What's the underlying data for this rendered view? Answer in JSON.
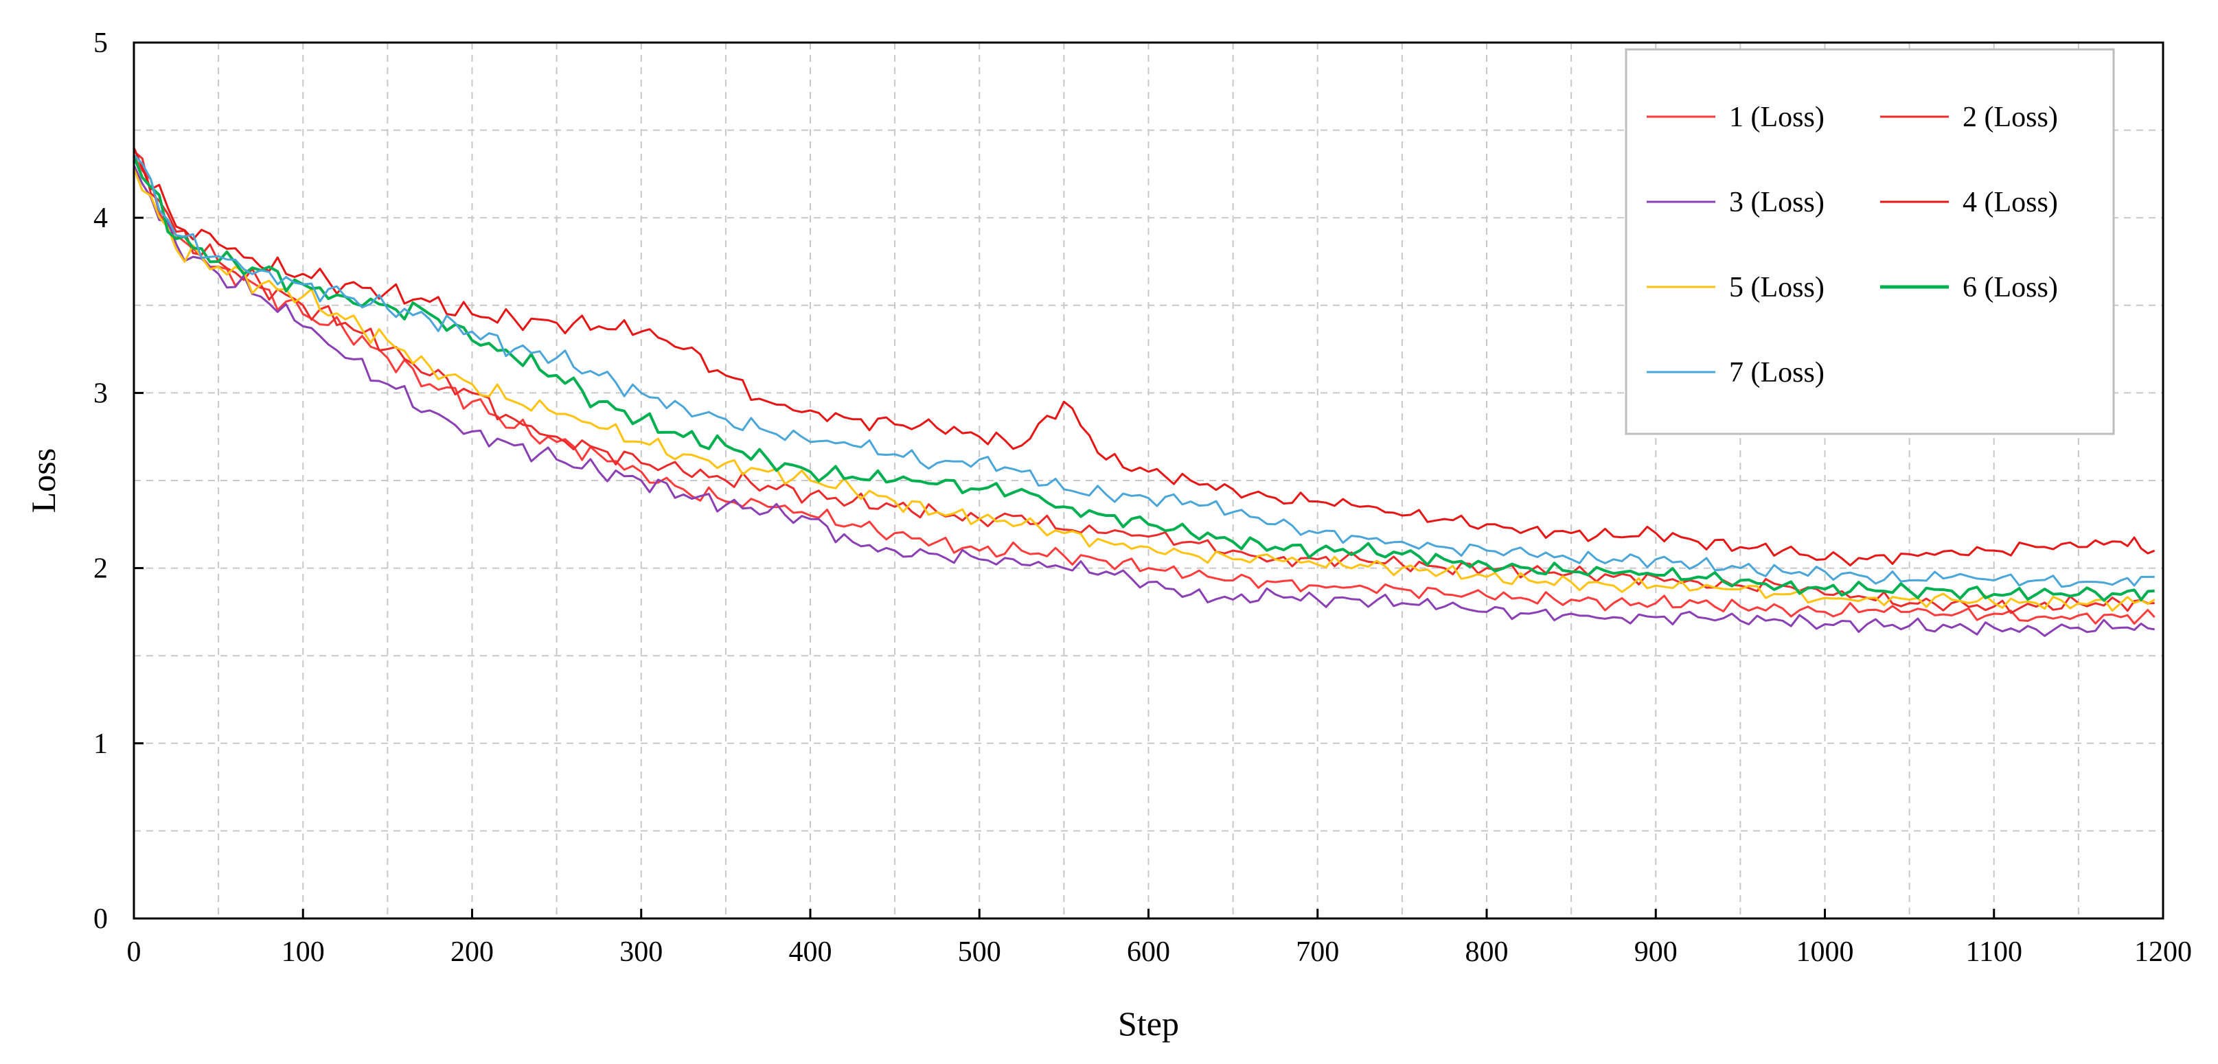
{
  "chart_data": {
    "type": "line",
    "title": "",
    "xlabel": "Step",
    "ylabel": "Loss",
    "xlim": [
      0,
      1200
    ],
    "ylim": [
      0,
      5
    ],
    "xticks": [
      0,
      100,
      200,
      300,
      400,
      500,
      600,
      700,
      800,
      900,
      1000,
      1100,
      1200
    ],
    "yticks": [
      0,
      1,
      2,
      3,
      4,
      5
    ],
    "grid": true,
    "legend_position": "top-right",
    "x": [
      0,
      25,
      50,
      75,
      100,
      125,
      150,
      175,
      200,
      225,
      250,
      275,
      300,
      325,
      350,
      375,
      400,
      425,
      450,
      475,
      500,
      525,
      550,
      575,
      600,
      625,
      650,
      675,
      700,
      725,
      750,
      775,
      800,
      825,
      850,
      875,
      900,
      925,
      950,
      975,
      1000,
      1025,
      1050,
      1075,
      1100,
      1125,
      1150,
      1175,
      1195
    ],
    "series": [
      {
        "name": "1 (Loss)",
        "color": "#ff3b3b",
        "values": [
          4.35,
          3.9,
          3.72,
          3.6,
          3.45,
          3.35,
          3.2,
          3.05,
          2.95,
          2.8,
          2.72,
          2.65,
          2.55,
          2.45,
          2.38,
          2.35,
          2.3,
          2.25,
          2.2,
          2.15,
          2.1,
          2.1,
          2.07,
          2.04,
          2.0,
          1.96,
          1.93,
          1.92,
          1.9,
          1.9,
          1.88,
          1.85,
          1.84,
          1.82,
          1.82,
          1.8,
          1.8,
          1.8,
          1.78,
          1.77,
          1.75,
          1.76,
          1.75,
          1.73,
          1.74,
          1.72,
          1.73,
          1.72,
          1.72
        ]
      },
      {
        "name": "2 (Loss)",
        "color": "#ee2a2a",
        "values": [
          4.38,
          3.92,
          3.75,
          3.62,
          3.5,
          3.4,
          3.25,
          3.1,
          3.0,
          2.85,
          2.75,
          2.68,
          2.6,
          2.55,
          2.5,
          2.47,
          2.42,
          2.38,
          2.35,
          2.32,
          2.28,
          2.3,
          2.22,
          2.2,
          2.18,
          2.15,
          2.1,
          2.05,
          2.05,
          2.05,
          2.02,
          2.0,
          2.0,
          1.98,
          1.97,
          1.95,
          1.95,
          1.92,
          1.9,
          1.9,
          1.85,
          1.83,
          1.8,
          1.8,
          1.78,
          1.78,
          1.8,
          1.8,
          1.8
        ]
      },
      {
        "name": "3 (Loss)",
        "color": "#8a3fb5",
        "values": [
          4.3,
          3.85,
          3.68,
          3.55,
          3.38,
          3.2,
          3.05,
          2.9,
          2.78,
          2.7,
          2.62,
          2.55,
          2.5,
          2.42,
          2.36,
          2.32,
          2.28,
          2.15,
          2.1,
          2.08,
          2.05,
          2.02,
          2.0,
          1.98,
          1.92,
          1.85,
          1.82,
          1.85,
          1.82,
          1.82,
          1.8,
          1.78,
          1.75,
          1.74,
          1.74,
          1.72,
          1.72,
          1.72,
          1.7,
          1.7,
          1.68,
          1.68,
          1.67,
          1.66,
          1.66,
          1.65,
          1.66,
          1.66,
          1.65
        ]
      },
      {
        "name": "4 (Loss)",
        "color": "#e81515",
        "values": [
          4.4,
          3.95,
          3.85,
          3.72,
          3.68,
          3.62,
          3.58,
          3.52,
          3.45,
          3.42,
          3.4,
          3.38,
          3.35,
          3.25,
          3.1,
          2.95,
          2.9,
          2.85,
          2.82,
          2.8,
          2.75,
          2.7,
          2.95,
          2.62,
          2.55,
          2.5,
          2.45,
          2.4,
          2.38,
          2.35,
          2.3,
          2.28,
          2.25,
          2.22,
          2.2,
          2.18,
          2.2,
          2.15,
          2.12,
          2.1,
          2.05,
          2.05,
          2.08,
          2.1,
          2.1,
          2.12,
          2.12,
          2.15,
          2.1
        ]
      },
      {
        "name": "5 (Loss)",
        "color": "#ffc20e",
        "values": [
          4.28,
          3.82,
          3.72,
          3.62,
          3.55,
          3.42,
          3.3,
          3.15,
          3.05,
          2.95,
          2.88,
          2.8,
          2.72,
          2.65,
          2.6,
          2.55,
          2.5,
          2.45,
          2.38,
          2.32,
          2.28,
          2.25,
          2.2,
          2.15,
          2.12,
          2.08,
          2.05,
          2.05,
          2.02,
          2.02,
          2.0,
          1.98,
          1.95,
          1.93,
          1.92,
          1.9,
          1.9,
          1.88,
          1.88,
          1.85,
          1.83,
          1.83,
          1.82,
          1.82,
          1.8,
          1.8,
          1.8,
          1.8,
          1.82
        ]
      },
      {
        "name": "6 (Loss)",
        "color": "#00b050",
        "values": [
          4.35,
          3.88,
          3.75,
          3.7,
          3.62,
          3.55,
          3.5,
          3.45,
          3.3,
          3.2,
          3.1,
          2.95,
          2.85,
          2.75,
          2.7,
          2.62,
          2.55,
          2.52,
          2.5,
          2.48,
          2.45,
          2.45,
          2.35,
          2.3,
          2.25,
          2.2,
          2.15,
          2.12,
          2.1,
          2.1,
          2.08,
          2.05,
          2.02,
          2.0,
          1.98,
          1.97,
          1.96,
          1.95,
          1.93,
          1.9,
          1.88,
          1.88,
          1.87,
          1.87,
          1.85,
          1.85,
          1.85,
          1.85,
          1.87
        ]
      },
      {
        "name": "7 (Loss)",
        "color": "#4aa6d8",
        "values": [
          4.36,
          3.9,
          3.78,
          3.7,
          3.62,
          3.55,
          3.48,
          3.42,
          3.35,
          3.25,
          3.2,
          3.1,
          3.0,
          2.92,
          2.85,
          2.78,
          2.72,
          2.7,
          2.65,
          2.6,
          2.62,
          2.55,
          2.45,
          2.42,
          2.4,
          2.38,
          2.32,
          2.25,
          2.2,
          2.18,
          2.15,
          2.12,
          2.1,
          2.08,
          2.05,
          2.05,
          2.05,
          2.02,
          2.0,
          1.98,
          1.98,
          1.95,
          1.93,
          1.95,
          1.93,
          1.93,
          1.92,
          1.93,
          1.95
        ]
      }
    ]
  }
}
